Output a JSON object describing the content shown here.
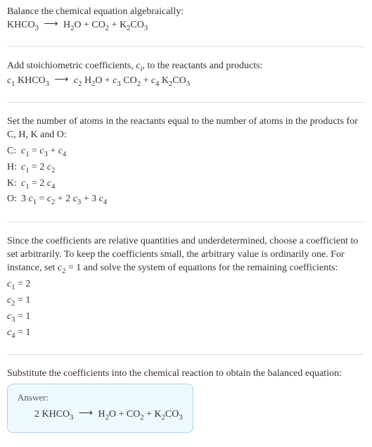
{
  "s1": {
    "l1": "Balance the chemical equation algebraically:"
  },
  "eqA": {
    "lhs": "KHCO",
    "lhs_s": "3",
    "arrow": "⟶",
    "r1": "H",
    "r1s": "2",
    "r2": "O + CO",
    "r2s": "2",
    "r3": " + K",
    "r3s": "2",
    "r4": "CO",
    "r4s": "3"
  },
  "s2": {
    "l1": "Add stoichiometric coefficients, ",
    "ci": "c",
    "cisub": "i",
    "l2": ", to the reactants and products:"
  },
  "eqB": {
    "c1": "c",
    "c1s": "1",
    "sp1": " KHCO",
    "sp1s": "3",
    "arrow": "⟶",
    "c2": "c",
    "c2s": "2",
    "sp2": " H",
    "sp2s": "2",
    "sp2b": "O + ",
    "c3": "c",
    "c3s": "3",
    "sp3": " CO",
    "sp3s": "2",
    "sp3b": " + ",
    "c4": "c",
    "c4s": "4",
    "sp4": " K",
    "sp4s": "2",
    "sp4b": "CO",
    "sp4bs": "3"
  },
  "s3": {
    "l1": "Set the number of atoms in the reactants equal to the number of atoms in the products for C, H, K and O:"
  },
  "table": {
    "r1a": "C:",
    "r1b_a": "c",
    "r1b_as": "1",
    "r1b_b": " = ",
    "r1b_c": "c",
    "r1b_cs": "3",
    "r1b_d": " + ",
    "r1b_e": "c",
    "r1b_es": "4",
    "r2a": "H:",
    "r2b_a": "c",
    "r2b_as": "1",
    "r2b_b": " = 2 ",
    "r2b_c": "c",
    "r2b_cs": "2",
    "r3a": "K:",
    "r3b_a": "c",
    "r3b_as": "1",
    "r3b_b": " = 2 ",
    "r3b_c": "c",
    "r3b_cs": "4",
    "r4a": "O:",
    "r4b_a": "3 ",
    "r4b_b": "c",
    "r4b_bs": "1",
    "r4b_c": " = ",
    "r4b_d": "c",
    "r4b_ds": "2",
    "r4b_e": " + 2 ",
    "r4b_f": "c",
    "r4b_fs": "3",
    "r4b_g": " + 3 ",
    "r4b_h": "c",
    "r4b_hs": "4"
  },
  "s4": {
    "l1": "Since the coefficients are relative quantities and underdetermined, choose a coefficient to set arbitrarily. To keep the coefficients small, the arbitrary value is ordinarily one. For instance, set ",
    "c2": "c",
    "c2s": "2",
    "l2": " = 1 and solve the system of equations for the remaining coefficients:"
  },
  "sol": {
    "l1a": "c",
    "l1as": "1",
    "l1b": " = 2",
    "l2a": "c",
    "l2as": "2",
    "l2b": " = 1",
    "l3a": "c",
    "l3as": "3",
    "l3b": " = 1",
    "l4a": "c",
    "l4as": "4",
    "l4b": " = 1"
  },
  "s5": {
    "l1": "Substitute the coefficients into the chemical reaction to obtain the balanced equation:"
  },
  "ans": {
    "label": "Answer:",
    "a": "2 KHCO",
    "as": "3",
    "arrow": "⟶",
    "b": "H",
    "bs": "2",
    "c": "O + CO",
    "cs": "2",
    "d": " + K",
    "ds": "2",
    "e": "CO",
    "es": "3"
  },
  "colors": {
    "hr": "#dddddd",
    "box_border": "#a9d2e8",
    "box_bg": "#eef8ff"
  }
}
